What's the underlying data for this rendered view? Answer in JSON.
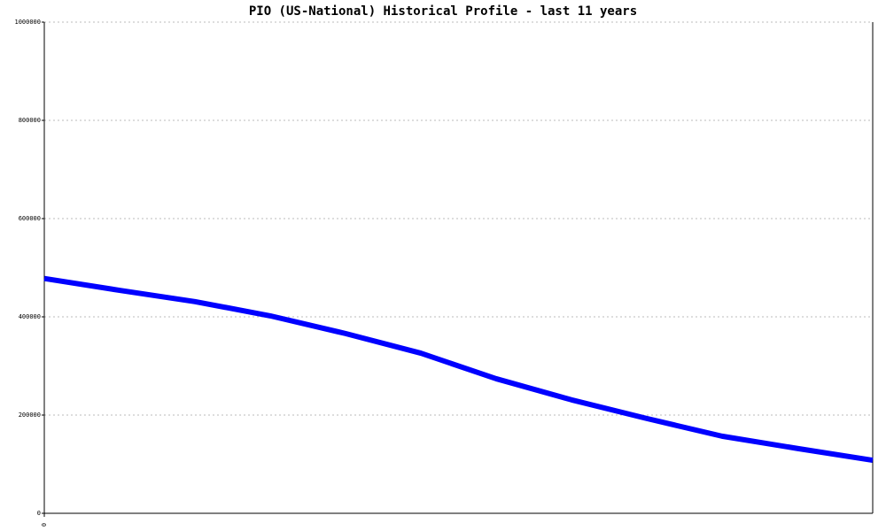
{
  "chart_data": {
    "type": "line",
    "title": "PIO (US-National) Historical Profile - last 11 years",
    "x": [
      0,
      1,
      2,
      3,
      4,
      5,
      6,
      7,
      8,
      9,
      10,
      11
    ],
    "xlim": [
      0,
      11
    ],
    "xticks": [
      0
    ],
    "series": [
      {
        "color": "#0000ff",
        "values": [
          478000,
          454000,
          431000,
          402000,
          366000,
          326000,
          274000,
          231000,
          193000,
          157000,
          132000,
          108000
        ]
      }
    ],
    "ylim": [
      0,
      1000000
    ],
    "yticks": [
      0,
      200000,
      400000,
      600000,
      800000,
      1000000
    ],
    "grid": true
  }
}
